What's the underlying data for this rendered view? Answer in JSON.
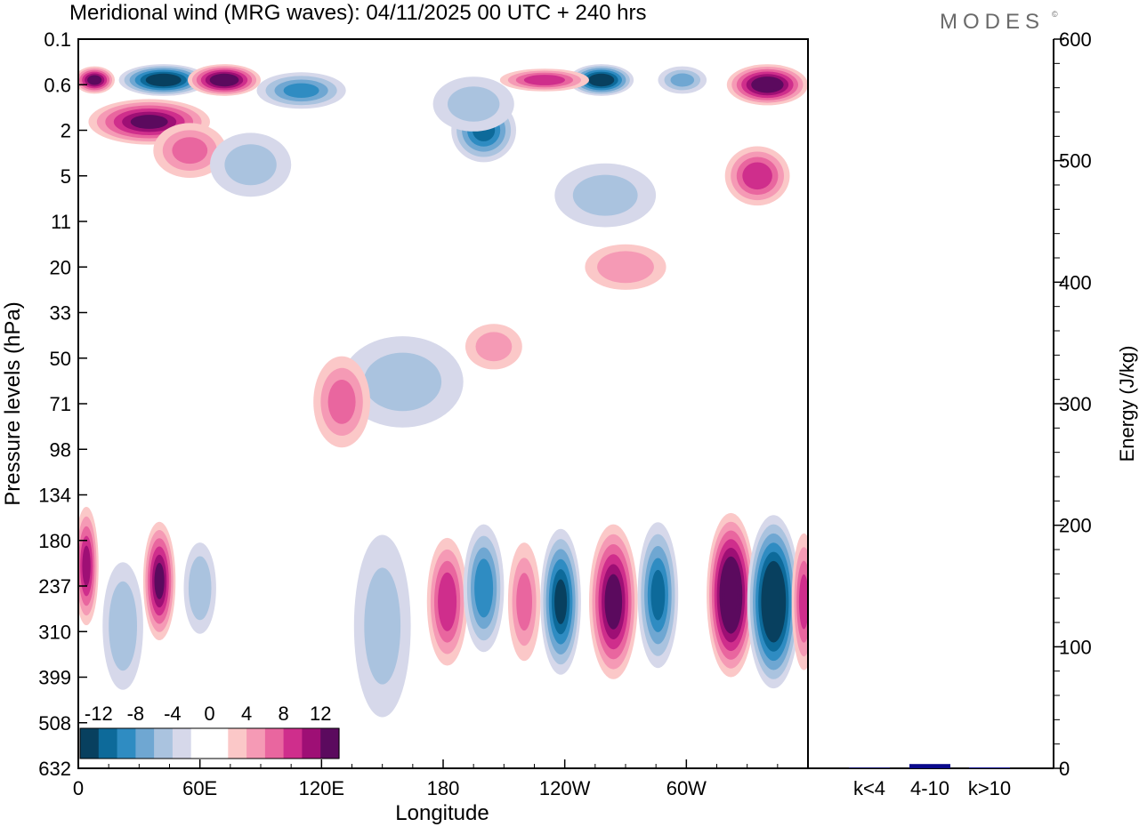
{
  "brand": "MODES",
  "brand_mark": "©",
  "chart_data": [
    {
      "type": "heatmap",
      "title": "Meridional wind (MRG waves):  04/11/2025  00 UTC  + 240 hrs",
      "xlabel": "Longitude",
      "ylabel": "Pressure levels (hPa)",
      "x_ticks": [
        "0",
        "60E",
        "120E",
        "180",
        "120W",
        "60W"
      ],
      "x_tick_values": [
        0,
        60,
        120,
        180,
        240,
        300
      ],
      "xlim": [
        0,
        360
      ],
      "y_ticks": [
        "0.1",
        "0.6",
        "2",
        "5",
        "11",
        "20",
        "33",
        "50",
        "71",
        "98",
        "134",
        "180",
        "237",
        "310",
        "399",
        "508",
        "632"
      ],
      "colorbar": {
        "labels": [
          "-12",
          "-8",
          "-4",
          "0",
          "4",
          "8",
          "12"
        ],
        "colors": [
          "#08405f",
          "#0d6a9a",
          "#2f8cc2",
          "#6fa7d2",
          "#aac3df",
          "#d6d8ea",
          "#ffffff",
          "#ffffff",
          "#fbc8c8",
          "#f59ab5",
          "#e9669f",
          "#cf2e8c",
          "#9e0f75",
          "#5b0a5e"
        ]
      },
      "features": [
        {
          "lon": 42,
          "lev": 0.5,
          "value": -14,
          "w": 22,
          "h": 0.7
        },
        {
          "lon": 72,
          "lev": 0.5,
          "value": 14,
          "w": 18,
          "h": 0.7
        },
        {
          "lon": 8,
          "lev": 0.5,
          "value": 13,
          "w": 10,
          "h": 0.6
        },
        {
          "lon": 110,
          "lev": 0.7,
          "value": -8,
          "w": 22,
          "h": 0.8
        },
        {
          "lon": 35,
          "lev": 1.6,
          "value": 12,
          "w": 30,
          "h": 1.0
        },
        {
          "lon": 55,
          "lev": 3.0,
          "value": 6,
          "w": 18,
          "h": 1.2
        },
        {
          "lon": 200,
          "lev": 2.0,
          "value": -10,
          "w": 16,
          "h": 1.4
        },
        {
          "lon": 195,
          "lev": 1.0,
          "value": -4,
          "w": 20,
          "h": 1.2
        },
        {
          "lon": 258,
          "lev": 0.5,
          "value": -14,
          "w": 16,
          "h": 0.7
        },
        {
          "lon": 230,
          "lev": 0.5,
          "value": 9,
          "w": 22,
          "h": 0.5
        },
        {
          "lon": 298,
          "lev": 0.5,
          "value": -6,
          "w": 12,
          "h": 0.6
        },
        {
          "lon": 340,
          "lev": 0.6,
          "value": 14,
          "w": 20,
          "h": 0.9
        },
        {
          "lon": 335,
          "lev": 5.0,
          "value": 9,
          "w": 16,
          "h": 1.3
        },
        {
          "lon": 85,
          "lev": 4.0,
          "value": -4,
          "w": 20,
          "h": 1.4
        },
        {
          "lon": 260,
          "lev": 7.0,
          "value": -4,
          "w": 25,
          "h": 1.4
        },
        {
          "lon": 270,
          "lev": 20,
          "value": 5,
          "w": 20,
          "h": 1.0
        },
        {
          "lon": 160,
          "lev": 60,
          "value": -4,
          "w": 30,
          "h": 2.0
        },
        {
          "lon": 130,
          "lev": 70,
          "value": 6,
          "w": 14,
          "h": 2.0
        },
        {
          "lon": 205,
          "lev": 45,
          "value": 4,
          "w": 14,
          "h": 1.0
        },
        {
          "lon": 4,
          "lev": 210,
          "value": 10,
          "w": 6,
          "h": 2.6
        },
        {
          "lon": 40,
          "lev": 230,
          "value": 12,
          "w": 8,
          "h": 2.6
        },
        {
          "lon": 22,
          "lev": 300,
          "value": -5,
          "w": 10,
          "h": 2.8
        },
        {
          "lon": 60,
          "lev": 240,
          "value": -5,
          "w": 8,
          "h": 2.0
        },
        {
          "lon": 150,
          "lev": 300,
          "value": -4,
          "w": 14,
          "h": 4.0
        },
        {
          "lon": 182,
          "lev": 260,
          "value": 9,
          "w": 10,
          "h": 2.8
        },
        {
          "lon": 200,
          "lev": 240,
          "value": -9,
          "w": 10,
          "h": 2.8
        },
        {
          "lon": 220,
          "lev": 260,
          "value": 6,
          "w": 8,
          "h": 2.6
        },
        {
          "lon": 238,
          "lev": 260,
          "value": -12,
          "w": 10,
          "h": 3.2
        },
        {
          "lon": 264,
          "lev": 260,
          "value": 13,
          "w": 12,
          "h": 3.4
        },
        {
          "lon": 286,
          "lev": 250,
          "value": -10,
          "w": 10,
          "h": 3.2
        },
        {
          "lon": 322,
          "lev": 250,
          "value": 16,
          "w": 12,
          "h": 3.6
        },
        {
          "lon": 343,
          "lev": 260,
          "value": -16,
          "w": 13,
          "h": 3.8
        },
        {
          "lon": 358,
          "lev": 260,
          "value": 8,
          "w": 6,
          "h": 3.0
        }
      ]
    },
    {
      "type": "bar",
      "ylabel": "Energy (J/kg)",
      "ylim": [
        0,
        600
      ],
      "y_ticks": [
        "0",
        "100",
        "200",
        "300",
        "400",
        "500",
        "600"
      ],
      "categories": [
        "k<4",
        "4-10",
        "k>10"
      ],
      "values": [
        0.5,
        3.5,
        0.7
      ],
      "bar_color": "#0a0a8c"
    }
  ]
}
